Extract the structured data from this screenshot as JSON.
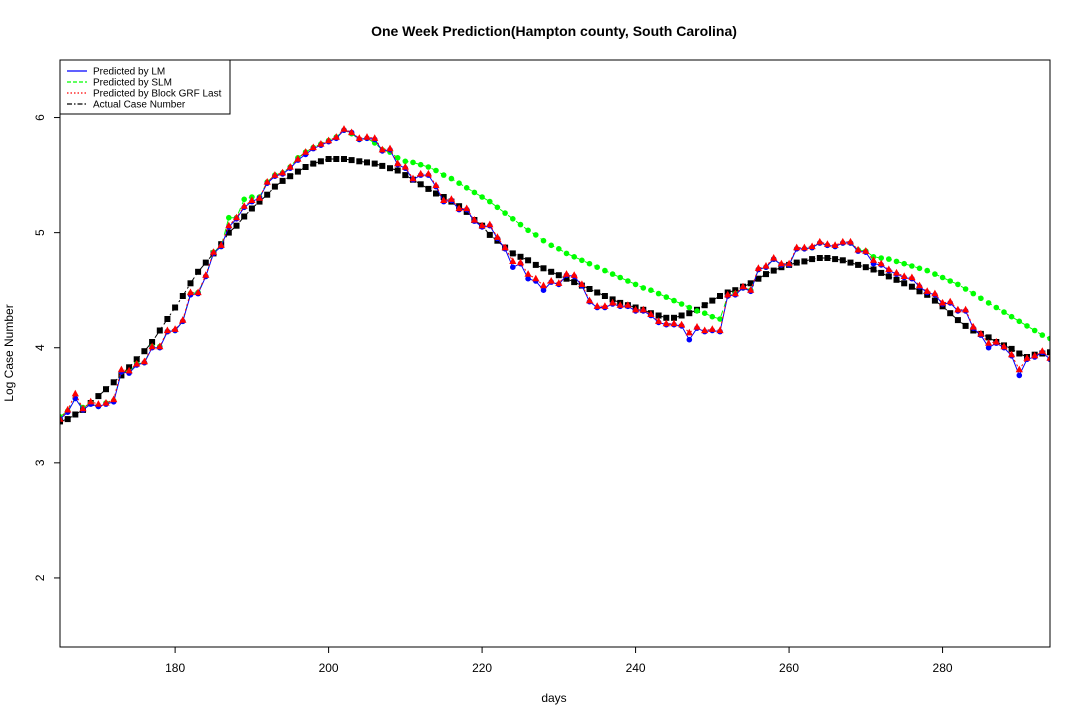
{
  "chart_data": {
    "type": "line",
    "title": "One Week Prediction(Hampton county, South Carolina)",
    "xlabel": "days",
    "ylabel": "Log Case Number",
    "xlim": [
      165,
      294
    ],
    "ylim": [
      1.4,
      6.5
    ],
    "x_ticks": [
      180,
      200,
      220,
      240,
      260,
      280
    ],
    "y_ticks": [
      2,
      3,
      4,
      5,
      6
    ],
    "grid": false,
    "legend_position": "top-left",
    "x": [
      165,
      166,
      167,
      168,
      169,
      170,
      171,
      172,
      173,
      174,
      175,
      176,
      177,
      178,
      179,
      180,
      181,
      182,
      183,
      184,
      185,
      186,
      187,
      188,
      189,
      190,
      191,
      192,
      193,
      194,
      195,
      196,
      197,
      198,
      199,
      200,
      201,
      202,
      203,
      204,
      205,
      206,
      207,
      208,
      209,
      210,
      211,
      212,
      213,
      214,
      215,
      216,
      217,
      218,
      219,
      220,
      221,
      222,
      223,
      224,
      225,
      226,
      227,
      228,
      229,
      230,
      231,
      232,
      233,
      234,
      235,
      236,
      237,
      238,
      239,
      240,
      241,
      242,
      243,
      244,
      245,
      246,
      247,
      248,
      249,
      250,
      251,
      252,
      253,
      254,
      255,
      256,
      257,
      258,
      259,
      260,
      261,
      262,
      263,
      264,
      265,
      266,
      267,
      268,
      269,
      270,
      271,
      272,
      273,
      274,
      275,
      276,
      277,
      278,
      279,
      280,
      281,
      282,
      283,
      284,
      285,
      286,
      287,
      288,
      289,
      290,
      291,
      292,
      293,
      294
    ],
    "series": [
      {
        "name": "Predicted by LM",
        "color": "#0000ff",
        "line_style": "solid",
        "marker": "circle",
        "values": [
          3.38,
          3.44,
          3.56,
          3.46,
          3.51,
          3.49,
          3.51,
          3.53,
          3.79,
          3.78,
          3.85,
          3.87,
          4.0,
          4.0,
          4.14,
          4.15,
          4.23,
          4.46,
          4.47,
          4.62,
          4.82,
          4.88,
          5.05,
          5.12,
          5.22,
          5.27,
          5.3,
          5.43,
          5.49,
          5.51,
          5.56,
          5.63,
          5.68,
          5.73,
          5.76,
          5.79,
          5.82,
          5.89,
          5.87,
          5.81,
          5.82,
          5.81,
          5.71,
          5.72,
          5.59,
          5.56,
          5.46,
          5.5,
          5.5,
          5.4,
          5.27,
          5.28,
          5.2,
          5.2,
          5.1,
          5.05,
          5.06,
          4.95,
          4.86,
          4.7,
          4.73,
          4.6,
          4.58,
          4.5,
          4.57,
          4.55,
          4.63,
          4.62,
          4.54,
          4.4,
          4.35,
          4.35,
          4.38,
          4.36,
          4.36,
          4.32,
          4.32,
          4.28,
          4.22,
          4.2,
          4.2,
          4.19,
          4.07,
          4.17,
          4.14,
          4.15,
          4.14,
          4.45,
          4.46,
          4.52,
          4.49,
          4.68,
          4.7,
          4.77,
          4.72,
          4.72,
          4.86,
          4.86,
          4.87,
          4.91,
          4.89,
          4.88,
          4.91,
          4.91,
          4.84,
          4.83,
          4.73,
          4.72,
          4.67,
          4.64,
          4.61,
          4.6,
          4.53,
          4.48,
          4.46,
          4.38,
          4.39,
          4.32,
          4.32,
          4.17,
          4.11,
          4.0,
          4.04,
          4.0,
          3.93,
          3.76,
          3.9,
          3.92,
          3.96,
          3.9
        ]
      },
      {
        "name": "Predicted by SLM",
        "color": "#00ff00",
        "line_style": "dashed",
        "marker": "circle",
        "values": [
          3.4,
          3.45,
          3.56,
          3.48,
          3.52,
          3.49,
          3.52,
          3.54,
          3.79,
          3.79,
          3.86,
          3.87,
          4.01,
          4.01,
          4.14,
          4.15,
          4.23,
          4.47,
          4.48,
          4.62,
          4.83,
          4.88,
          5.13,
          5.13,
          5.29,
          5.31,
          5.31,
          5.44,
          5.5,
          5.52,
          5.57,
          5.65,
          5.7,
          5.74,
          5.77,
          5.8,
          5.83,
          5.89,
          5.86,
          5.81,
          5.82,
          5.78,
          5.72,
          5.7,
          5.65,
          5.62,
          5.61,
          5.59,
          5.57,
          5.54,
          5.5,
          5.47,
          5.43,
          5.39,
          5.35,
          5.31,
          5.27,
          5.22,
          5.17,
          5.12,
          5.07,
          5.02,
          4.98,
          4.93,
          4.89,
          4.86,
          4.82,
          4.79,
          4.76,
          4.73,
          4.7,
          4.67,
          4.64,
          4.61,
          4.58,
          4.55,
          4.52,
          4.5,
          4.47,
          4.44,
          4.41,
          4.38,
          4.35,
          4.32,
          4.3,
          4.27,
          4.25,
          4.45,
          4.47,
          4.52,
          4.5,
          4.68,
          4.7,
          4.77,
          4.72,
          4.72,
          4.86,
          4.86,
          4.87,
          4.91,
          4.89,
          4.88,
          4.91,
          4.91,
          4.85,
          4.84,
          4.79,
          4.78,
          4.77,
          4.75,
          4.73,
          4.71,
          4.69,
          4.67,
          4.64,
          4.61,
          4.58,
          4.55,
          4.51,
          4.47,
          4.43,
          4.39,
          4.35,
          4.31,
          4.27,
          4.23,
          4.19,
          4.15,
          4.11,
          4.08
        ]
      },
      {
        "name": "Predicted by Block GRF Last",
        "color": "#ff0000",
        "line_style": "dotted",
        "marker": "triangle",
        "values": [
          3.38,
          3.46,
          3.6,
          3.47,
          3.53,
          3.51,
          3.52,
          3.55,
          3.81,
          3.8,
          3.86,
          3.88,
          4.01,
          4.01,
          4.15,
          4.16,
          4.24,
          4.48,
          4.48,
          4.63,
          4.83,
          4.89,
          5.06,
          5.13,
          5.23,
          5.28,
          5.3,
          5.44,
          5.5,
          5.52,
          5.57,
          5.64,
          5.7,
          5.74,
          5.77,
          5.8,
          5.83,
          5.9,
          5.87,
          5.82,
          5.83,
          5.82,
          5.72,
          5.73,
          5.6,
          5.57,
          5.47,
          5.51,
          5.51,
          5.41,
          5.28,
          5.29,
          5.21,
          5.21,
          5.11,
          5.06,
          5.07,
          4.96,
          4.87,
          4.75,
          4.74,
          4.64,
          4.6,
          4.54,
          4.58,
          4.56,
          4.64,
          4.63,
          4.55,
          4.41,
          4.36,
          4.36,
          4.39,
          4.37,
          4.37,
          4.33,
          4.33,
          4.29,
          4.23,
          4.21,
          4.21,
          4.2,
          4.13,
          4.18,
          4.15,
          4.16,
          4.15,
          4.46,
          4.47,
          4.53,
          4.5,
          4.69,
          4.71,
          4.78,
          4.73,
          4.73,
          4.87,
          4.87,
          4.88,
          4.92,
          4.9,
          4.89,
          4.92,
          4.92,
          4.85,
          4.84,
          4.76,
          4.73,
          4.68,
          4.65,
          4.62,
          4.61,
          4.54,
          4.49,
          4.47,
          4.39,
          4.4,
          4.33,
          4.33,
          4.18,
          4.12,
          4.04,
          4.05,
          4.01,
          3.94,
          3.81,
          3.91,
          3.93,
          3.97,
          3.91
        ]
      },
      {
        "name": "Actual Case Number",
        "color": "#000000",
        "line_style": "dashdot",
        "marker": "square",
        "values": [
          3.36,
          3.38,
          3.42,
          3.46,
          3.52,
          3.58,
          3.64,
          3.7,
          3.76,
          3.83,
          3.9,
          3.97,
          4.05,
          4.15,
          4.25,
          4.35,
          4.45,
          4.56,
          4.66,
          4.74,
          4.82,
          4.9,
          5.0,
          5.06,
          5.14,
          5.21,
          5.27,
          5.33,
          5.4,
          5.45,
          5.49,
          5.53,
          5.57,
          5.6,
          5.62,
          5.64,
          5.64,
          5.64,
          5.63,
          5.62,
          5.61,
          5.6,
          5.58,
          5.56,
          5.54,
          5.5,
          5.46,
          5.42,
          5.38,
          5.34,
          5.31,
          5.27,
          5.23,
          5.18,
          5.11,
          5.06,
          4.98,
          4.93,
          4.87,
          4.82,
          4.79,
          4.76,
          4.72,
          4.69,
          4.66,
          4.63,
          4.6,
          4.57,
          4.54,
          4.51,
          4.48,
          4.45,
          4.42,
          4.39,
          4.37,
          4.35,
          4.33,
          4.3,
          4.28,
          4.26,
          4.26,
          4.28,
          4.3,
          4.33,
          4.37,
          4.41,
          4.45,
          4.48,
          4.5,
          4.53,
          4.56,
          4.6,
          4.64,
          4.67,
          4.7,
          4.72,
          4.74,
          4.75,
          4.77,
          4.78,
          4.78,
          4.77,
          4.76,
          4.74,
          4.72,
          4.7,
          4.68,
          4.65,
          4.62,
          4.59,
          4.56,
          4.53,
          4.49,
          4.46,
          4.41,
          4.36,
          4.3,
          4.24,
          4.19,
          4.15,
          4.12,
          4.09,
          4.05,
          4.02,
          3.99,
          3.95,
          3.92,
          3.94,
          3.95,
          3.96
        ]
      }
    ]
  }
}
